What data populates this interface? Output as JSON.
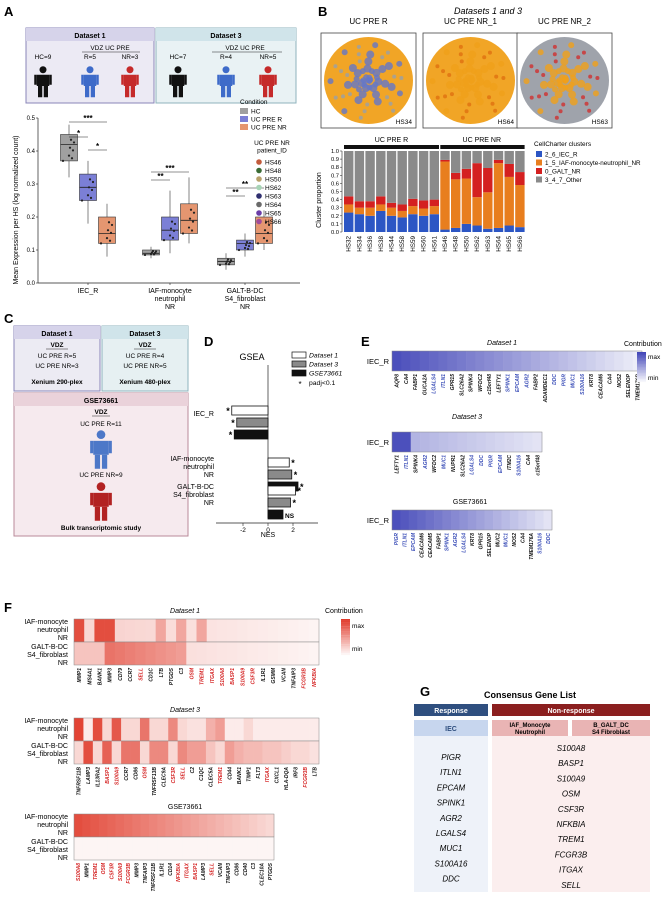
{
  "panels": {
    "A": "A",
    "B": "B",
    "C": "C",
    "D": "D",
    "E": "E",
    "F": "F",
    "G": "G"
  },
  "colors": {
    "hc": "#a0a0a0",
    "pre_r": "#7b7fd6",
    "pre_nr": "#e59670",
    "response_header": "#2f4f7f",
    "nonresponse_header": "#8b1f1f",
    "iec": "#2c56c4",
    "iafmono": "#e87e1e",
    "galt": "#d42020",
    "other": "#8a8a8a",
    "blue_heat": "#4347b8",
    "red_heat": "#e03a2a"
  },
  "panelA": {
    "dataset1": "Dataset 1",
    "dataset3": "Dataset 3",
    "vdz1": "VDZ UC PRE",
    "vdz3": "VDZ UC PRE",
    "hc9": "HC=9",
    "r5": "R=5",
    "nr3": "NR=3",
    "hc7": "HC=7",
    "r4": "R=4",
    "nr5": "NR=5",
    "ylabel": "Mean Expression per HS (log normalized count)",
    "yticks": [
      "0.0",
      "0.1",
      "0.2",
      "0.3",
      "0.4",
      "0.5"
    ],
    "xcats": [
      "IEC_R",
      "IAF-monocyte\nneutrophil\nNR",
      "GALT-B-DC\nS4_fibroblast\nNR"
    ],
    "legend_condition_title": "Condition",
    "legend_condition": [
      "HC",
      "UC PRE R",
      "UC PRE NR"
    ],
    "legend_patient_title": "UC PRE NR\npatient_ID",
    "patients": [
      {
        "id": "HS46",
        "color": "#c25b3c"
      },
      {
        "id": "HS48",
        "color": "#3a6b35"
      },
      {
        "id": "HS50",
        "color": "#b8a16b"
      },
      {
        "id": "HS62",
        "color": "#a7d4b6"
      },
      {
        "id": "HS63",
        "color": "#2f2f6f"
      },
      {
        "id": "HS64",
        "color": "#6a6a6a"
      },
      {
        "id": "HS65",
        "color": "#6a3da8"
      },
      {
        "id": "HS66",
        "color": "#a04c9a"
      }
    ],
    "sig": [
      "*",
      "*",
      "***",
      "**",
      "***",
      "**",
      "**"
    ]
  },
  "panelB": {
    "title": "Datasets 1 and 3",
    "img_titles": [
      "UC PRE R",
      "UC PRE NR_1",
      "UC PRE NR_2"
    ],
    "img_ids": [
      "HS34",
      "HS64",
      "HS63"
    ],
    "group_r": "UC PRE R",
    "group_nr": "UC PRE NR",
    "ylabel": "Cluster proportion",
    "yticks": [
      "0.0",
      "0.1",
      "0.2",
      "0.3",
      "0.4",
      "0.5",
      "0.6",
      "0.7",
      "0.8",
      "0.9",
      "1.0"
    ],
    "legend_title": "CellCharter clusters",
    "legend": [
      "2_6_IEC_R",
      "1_5_IAF-monocyte-neutrophil_NR",
      "0_GALT_NR",
      "3_4_7_Other"
    ]
  },
  "chart_data": {
    "type": "bar",
    "stacked": true,
    "ylabel": "Cluster proportion",
    "ylim": [
      0,
      1
    ],
    "categories": [
      "HS32",
      "HS34",
      "HS36",
      "HS38",
      "HS44",
      "HS58",
      "HS59",
      "HS60",
      "HS61",
      "HS46",
      "HS48",
      "HS50",
      "HS62",
      "HS63",
      "HS64",
      "HS65",
      "HS66"
    ],
    "series": [
      {
        "name": "2_6_IEC_R",
        "values": [
          0.24,
          0.22,
          0.2,
          0.26,
          0.2,
          0.18,
          0.22,
          0.2,
          0.22,
          0.03,
          0.05,
          0.1,
          0.08,
          0.04,
          0.05,
          0.08,
          0.06
        ]
      },
      {
        "name": "1_5_IAF-monocyte-neutrophil_NR",
        "values": [
          0.1,
          0.08,
          0.1,
          0.08,
          0.1,
          0.08,
          0.1,
          0.09,
          0.1,
          0.84,
          0.6,
          0.56,
          0.35,
          0.45,
          0.8,
          0.6,
          0.52
        ]
      },
      {
        "name": "0_GALT_NR",
        "values": [
          0.1,
          0.08,
          0.08,
          0.1,
          0.06,
          0.08,
          0.09,
          0.1,
          0.08,
          0.02,
          0.08,
          0.12,
          0.42,
          0.3,
          0.04,
          0.16,
          0.16
        ]
      },
      {
        "name": "3_4_7_Other",
        "values": [
          0.56,
          0.62,
          0.62,
          0.56,
          0.64,
          0.66,
          0.59,
          0.61,
          0.6,
          0.11,
          0.27,
          0.22,
          0.15,
          0.21,
          0.11,
          0.16,
          0.26
        ]
      }
    ]
  },
  "panelC": {
    "dataset1": "Dataset 1",
    "vdz1": "VDZ",
    "r1": "UC PRE R=5",
    "nr1": "UC PRE NR=3",
    "plex1": "Xenium 290-plex",
    "dataset3": "Dataset 3",
    "vdz3": "VDZ",
    "r3": "UC PRE R=4",
    "nr3": "UC PRE NR=5",
    "plex3": "Xenium 480-plex",
    "gse": "GSE73661",
    "vdz": "VDZ",
    "r": "UC PRE R=11",
    "nr": "UC PRE NR=9",
    "bulk": "Bulk transcriptomic study"
  },
  "panelD": {
    "title": "GSEA",
    "legend": [
      "Dataset 1",
      "Dataset 3",
      "GSE73661",
      "padj<0.1"
    ],
    "legend_star": "*",
    "cats": [
      "IEC_R",
      "IAF-monocyte\nneutrophil\nNR",
      "GALT-B-DC\nS4_fibroblast\nNR"
    ],
    "xlabel": "NES",
    "xticks": [
      "-2",
      "0",
      "2"
    ],
    "values": [
      [
        -2.9,
        -2.5,
        -2.7
      ],
      [
        1.7,
        1.9,
        2.4
      ],
      [
        2.2,
        1.8,
        1.2
      ]
    ],
    "marks": [
      [
        "*",
        "*",
        "*"
      ],
      [
        "*",
        "*",
        "*"
      ],
      [
        "*",
        "*",
        "NS"
      ]
    ]
  },
  "panelE": {
    "legend_title": "Contribution",
    "max": "max",
    "min": "min",
    "row_label": "IEC_R",
    "d1_title": "Dataset 1",
    "d3_title": "Dataset 3",
    "gse_title": "GSE73661",
    "d1_genes": [
      "AQP8",
      "CA4",
      "FABP1",
      "GUCA2A",
      "LGALS4",
      "ITLN1",
      "GPR15",
      "SLC26A2",
      "SPINK4",
      "WFDC2",
      "c15orf48",
      "LEFTY1",
      "SPINK1",
      "EPCAM",
      "AGR2",
      "FABP2",
      "ADAMDEC1",
      "DDC",
      "PIGR",
      "MUC1",
      "S100A16",
      "KRT8",
      "CEACAM6",
      "CA4",
      "NOS2",
      "SELENOP",
      "TMEM176B"
    ],
    "d1_blue": [
      4,
      5,
      12,
      13,
      14,
      17,
      18,
      19,
      20
    ],
    "d3_genes": [
      "LEFTY1",
      "ITLN1",
      "SPINK4",
      "AGR2",
      "WFDC2",
      "MUC1",
      "NUPR1",
      "SLC26A2",
      "LGALS4",
      "DDC",
      "PIGR",
      "EPCAM",
      "ITM2C",
      "S100A16",
      "CA4",
      "c15orf48"
    ],
    "d3_blue": [
      1,
      3,
      5,
      8,
      9,
      10,
      11,
      13
    ],
    "gse_genes": [
      "PIGR",
      "ITLN1",
      "EPCAM",
      "CEACAM6",
      "CEACAM5",
      "FABP1",
      "SPINK1",
      "AGR2",
      "LGALS4",
      "KRT8",
      "GPR15",
      "SELENOP",
      "MUC2",
      "MUC1",
      "NOS2",
      "CA4",
      "TMEM176A",
      "S100A16",
      "DDC"
    ],
    "gse_blue": [
      0,
      1,
      2,
      6,
      7,
      8,
      13,
      17,
      18
    ]
  },
  "panelF": {
    "legend_title": "Contribution",
    "max": "max",
    "min": "min",
    "rows": [
      "IAF-monocyte\nneutrophil\nNR",
      "GALT-B-DC\nS4_fibroblast\nNR"
    ],
    "d1_title": "Dataset 1",
    "d3_title": "Dataset 3",
    "gse_title": "GSE73661",
    "d1_genes": [
      "MMP1",
      "MS4A1",
      "BANK1",
      "MMP3",
      "CD79",
      "CCR7",
      "SELL",
      "CD1C",
      "LTB",
      "PTGDS",
      "C3",
      "OSM",
      "TREM1",
      "ITGAX",
      "S100A8",
      "BASP1",
      "S100A9",
      "CSF3R",
      "IL1R1",
      "GSMM",
      "VCAN",
      "TNFAIP3",
      "FCGR3B",
      "NFKBIA"
    ],
    "d1_red": [
      6,
      11,
      12,
      13,
      14,
      15,
      16,
      17,
      22,
      23
    ],
    "d3_genes": [
      "TNFRSF11B",
      "LAMP3",
      "IL13RA2",
      "BASP1",
      "S100A9",
      "CCR7",
      "CD86",
      "OSM",
      "TNFRSF13B",
      "CLEC9A",
      "CSF3R",
      "SELL",
      "C2",
      "C1QC",
      "CLEC5A",
      "TREM1",
      "CD44",
      "BANK1",
      "TIMP1",
      "FLT3",
      "ITGAX",
      "CXCL1",
      "HLA-DQA",
      "IRF8",
      "FCGR3B",
      "LTB"
    ],
    "d3_red": [
      3,
      4,
      7,
      10,
      11,
      15,
      20,
      24
    ],
    "gse_genes": [
      "S100A8",
      "MMP1",
      "TREM1",
      "OSM",
      "CSF3R",
      "S100A9",
      "FCGR3B",
      "MMP3",
      "TNFAIP3",
      "TNFRSF11B",
      "IL1R1",
      "CD14",
      "NFKBIA",
      "ITGAX",
      "BASP1",
      "LAMP3",
      "SELL",
      "VCAN",
      "TNFAIP3",
      "CD86",
      "CD40",
      "C3",
      "CLEC10A",
      "PTGDS"
    ],
    "gse_red": [
      0,
      2,
      3,
      4,
      5,
      6,
      12,
      13,
      14,
      16
    ]
  },
  "panelG": {
    "title": "Consensus Gene List",
    "response": "Response",
    "nonresponse": "Non-response",
    "iec": "IEC",
    "iaf": "IAF_Monocyte\nNeutrophil",
    "galt": "B_GALT_DC\nS4 Fibroblast",
    "response_genes": [
      "PIGR",
      "ITLN1",
      "EPCAM",
      "SPINK1",
      "AGR2",
      "LGALS4",
      "MUC1",
      "S100A16",
      "DDC"
    ],
    "nonresponse_genes": [
      "S100A8",
      "BASP1",
      "S100A9",
      "OSM",
      "CSF3R",
      "NFKBIA",
      "TREM1",
      "FCGR3B",
      "ITGAX",
      "SELL"
    ]
  }
}
